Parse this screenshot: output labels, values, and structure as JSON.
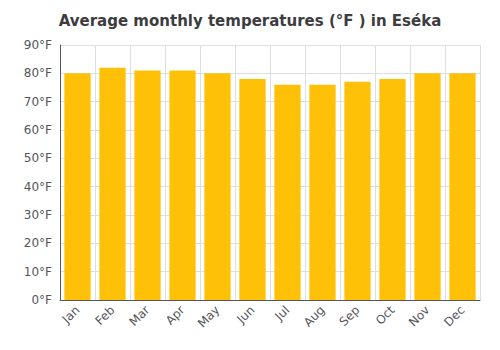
{
  "chart_data": {
    "type": "bar",
    "title": "Average monthly temperatures (°F ) in Eséka",
    "categories": [
      "Jan",
      "Feb",
      "Mar",
      "Apr",
      "May",
      "Jun",
      "Jul",
      "Aug",
      "Sep",
      "Oct",
      "Nov",
      "Dec"
    ],
    "values": [
      80,
      82,
      81,
      81,
      80,
      78,
      76,
      76,
      77,
      78,
      80,
      80
    ],
    "color": "#FFC107",
    "ylim": [
      0,
      90
    ],
    "yticks": [
      {
        "value": 0,
        "label": "0°F"
      },
      {
        "value": 10,
        "label": "10°F"
      },
      {
        "value": 20,
        "label": "20°F"
      },
      {
        "value": 30,
        "label": "30°F"
      },
      {
        "value": 40,
        "label": "40°F"
      },
      {
        "value": 50,
        "label": "50°F"
      },
      {
        "value": 60,
        "label": "60°F"
      },
      {
        "value": 70,
        "label": "70°F"
      },
      {
        "value": 80,
        "label": "80°F"
      },
      {
        "value": 90,
        "label": "90°F"
      }
    ],
    "grid": true
  }
}
